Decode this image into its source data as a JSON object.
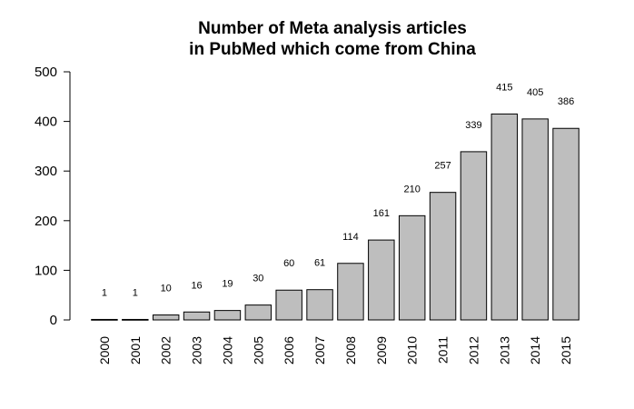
{
  "chart_data": {
    "type": "bar",
    "title_line1": "Number of Meta analysis articles",
    "title_line2": "in PubMed which come from China",
    "categories": [
      "2000",
      "2001",
      "2002",
      "2003",
      "2004",
      "2005",
      "2006",
      "2007",
      "2008",
      "2009",
      "2010",
      "2011",
      "2012",
      "2013",
      "2014",
      "2015"
    ],
    "values": [
      1,
      1,
      10,
      16,
      19,
      30,
      60,
      61,
      114,
      161,
      210,
      257,
      339,
      415,
      405,
      386
    ],
    "data_labels": [
      "1",
      "1",
      "10",
      "16",
      "19",
      "30",
      "60",
      "61",
      "114",
      "161",
      "210",
      "257",
      "339",
      "415",
      "405",
      "386"
    ],
    "yticks": [
      0,
      100,
      200,
      300,
      400,
      500
    ],
    "ylim": [
      0,
      500
    ],
    "xlabel": "",
    "ylabel": "",
    "bar_color": "#bebebe",
    "bar_outline": "#000000",
    "grid": false
  }
}
